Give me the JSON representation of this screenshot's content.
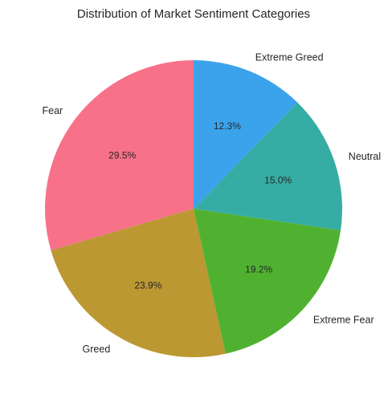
{
  "chart_data": {
    "type": "pie",
    "title": "Distribution of Market Sentiment Categories",
    "start_angle_deg": 90,
    "direction": "counterclockwise",
    "slices": [
      {
        "label": "Fear",
        "value": 29.5,
        "pct_label": "29.5%",
        "color": "#f77189"
      },
      {
        "label": "Greed",
        "value": 23.9,
        "pct_label": "23.9%",
        "color": "#bb9832"
      },
      {
        "label": "Extreme Fear",
        "value": 19.2,
        "pct_label": "19.2%",
        "color": "#50b131"
      },
      {
        "label": "Neutral",
        "value": 15.0,
        "pct_label": "15.0%",
        "color": "#36ada4"
      },
      {
        "label": "Extreme Greed",
        "value": 12.3,
        "pct_label": "12.3%",
        "color": "#3ba3ec"
      }
    ]
  }
}
